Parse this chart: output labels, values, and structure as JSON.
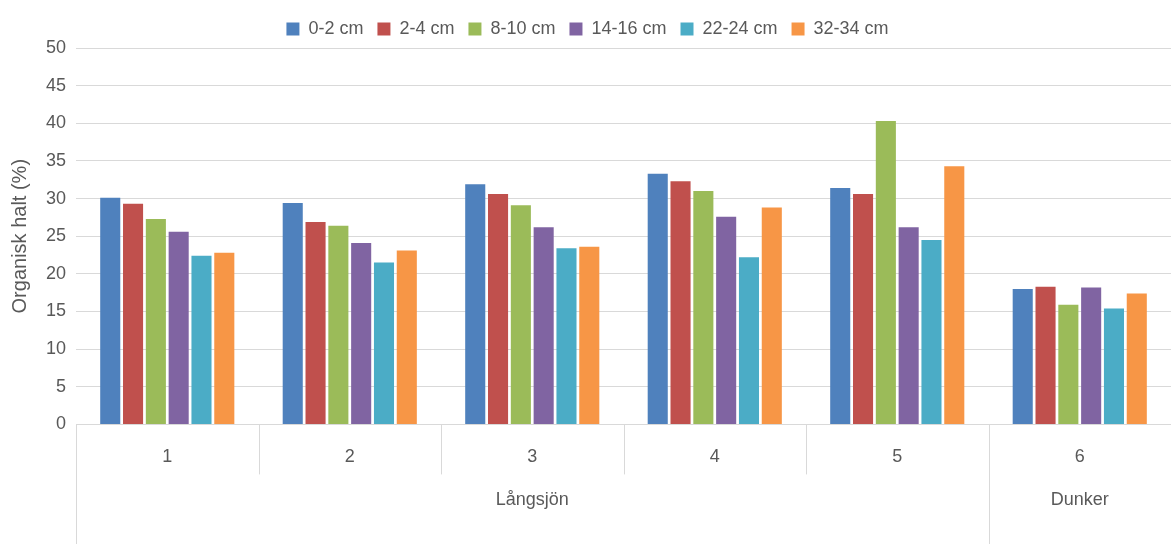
{
  "chart_data": {
    "type": "bar",
    "ylabel": "Organisk halt (%)",
    "categories": [
      "1",
      "2",
      "3",
      "4",
      "5",
      "6"
    ],
    "series": [
      {
        "name": "0-2 cm",
        "color": "#4f81bd",
        "values": [
          30.1,
          29.4,
          31.9,
          33.3,
          31.4,
          18.0
        ]
      },
      {
        "name": "2-4 cm",
        "color": "#c0504d",
        "values": [
          29.3,
          26.9,
          30.6,
          32.3,
          30.6,
          18.3
        ]
      },
      {
        "name": "8-10 cm",
        "color": "#9bbb59",
        "values": [
          27.3,
          26.4,
          29.1,
          31.0,
          40.3,
          15.9
        ]
      },
      {
        "name": "14-16 cm",
        "color": "#8064a2",
        "values": [
          25.6,
          24.1,
          26.2,
          27.6,
          26.2,
          18.2
        ]
      },
      {
        "name": "22-24 cm",
        "color": "#4bacc6",
        "values": [
          22.4,
          21.5,
          23.4,
          22.2,
          24.5,
          15.4
        ]
      },
      {
        "name": "32-34 cm",
        "color": "#f79646",
        "values": [
          22.8,
          23.1,
          23.6,
          28.8,
          34.3,
          17.4
        ]
      }
    ],
    "ylim": [
      0,
      50
    ],
    "yticks": [
      0,
      5,
      10,
      15,
      20,
      25,
      30,
      35,
      40,
      45,
      50
    ],
    "grid": "y",
    "legend": "top",
    "annotations": [
      "Långsjön",
      "Dunker"
    ]
  }
}
